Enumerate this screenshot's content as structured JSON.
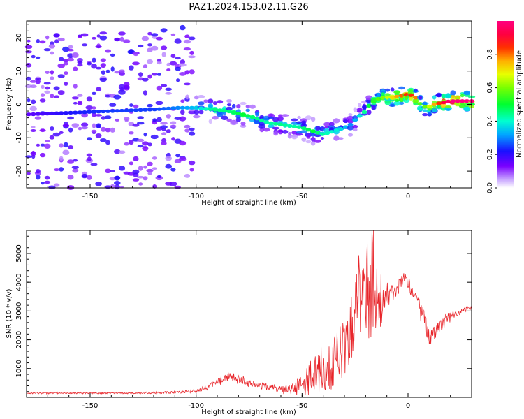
{
  "title": "PAZ1.2024.153.02.11.G26",
  "colors": {
    "snr_line": "#e8252a",
    "frame": "#000000",
    "background": "#ffffff"
  },
  "chart_data": [
    {
      "type": "heatmap",
      "xlabel": "Height of straight line (km)",
      "ylabel": "Frequency (Hz)",
      "xlim": [
        -180,
        30
      ],
      "ylim": [
        -25,
        25
      ],
      "x_ticks": [
        -150,
        -100,
        -50,
        0
      ],
      "y_ticks": [
        -20,
        -10,
        0,
        10,
        20
      ],
      "grid": false,
      "colorbar": {
        "label": "Normalized spectral amplitude",
        "range": [
          0,
          1
        ],
        "ticks": [
          0.0,
          0.2,
          0.4,
          0.6,
          0.8
        ],
        "colormap": "gist_rainbow_r"
      },
      "ridge": {
        "x": [
          -180,
          -160,
          -140,
          -120,
          -108,
          -100,
          -92,
          -85,
          -78,
          -72,
          -66,
          -60,
          -55,
          -50,
          -45,
          -40,
          -35,
          -30,
          -27,
          -24,
          -20,
          -18,
          -15,
          -12,
          -8,
          -4,
          0,
          3,
          6,
          9,
          12,
          16,
          20,
          25,
          30
        ],
        "freq": [
          -3,
          -2.5,
          -2,
          -1.5,
          -1,
          -1,
          -1.5,
          -2,
          -3,
          -4,
          -5.5,
          -6,
          -6.5,
          -7,
          -8,
          -9,
          -8,
          -7,
          -6,
          -4,
          -2,
          0,
          1.5,
          2,
          2,
          2.5,
          3,
          2.5,
          0,
          -1,
          0,
          0.5,
          1,
          1,
          1
        ],
        "amplitude": [
          0.15,
          0.22,
          0.25,
          0.25,
          0.3,
          0.35,
          0.45,
          0.45,
          0.5,
          0.45,
          0.42,
          0.45,
          0.42,
          0.45,
          0.5,
          0.42,
          0.4,
          0.35,
          0.3,
          0.35,
          0.45,
          0.5,
          0.55,
          0.6,
          0.7,
          0.8,
          0.85,
          0.85,
          0.55,
          0.6,
          0.75,
          0.9,
          1.0,
          1.0,
          1.0
        ]
      }
    },
    {
      "type": "line",
      "xlabel": "Height of straight line (km)",
      "ylabel": "SNR (10 * v/v)",
      "xlim": [
        -180,
        30
      ],
      "ylim": [
        0,
        5800
      ],
      "x_ticks": [
        -150,
        -100,
        -50,
        0
      ],
      "y_ticks": [
        1000,
        2000,
        3000,
        4000,
        5000
      ],
      "grid": false,
      "series": [
        {
          "x": [
            -180,
            -170,
            -160,
            -150,
            -140,
            -130,
            -120,
            -110,
            -100,
            -95,
            -90,
            -85,
            -80,
            -75,
            -70,
            -65,
            -60,
            -55,
            -50,
            -45,
            -40,
            -35,
            -30,
            -27,
            -24,
            -22,
            -20,
            -18,
            -16,
            -14,
            -12,
            -10,
            -8,
            -6,
            -4,
            -2,
            0,
            2,
            4,
            6,
            8,
            10,
            12,
            15,
            20,
            25,
            30
          ],
          "y": [
            150,
            150,
            150,
            150,
            150,
            150,
            160,
            170,
            220,
            350,
            500,
            700,
            650,
            500,
            400,
            350,
            300,
            300,
            400,
            800,
            1000,
            1300,
            1700,
            2500,
            3200,
            4000,
            4500,
            4200,
            5000,
            3800,
            3000,
            3500,
            3600,
            3700,
            3900,
            4300,
            4000,
            3600,
            3400,
            3000,
            2600,
            2100,
            2200,
            2500,
            2800,
            3000,
            3100
          ],
          "amplitude": [
            30,
            30,
            30,
            30,
            30,
            30,
            35,
            40,
            60,
            100,
            150,
            200,
            200,
            150,
            120,
            120,
            150,
            200,
            350,
            700,
            900,
            1000,
            1100,
            1200,
            1500,
            1700,
            2000,
            2400,
            2500,
            1800,
            800,
            500,
            400,
            300,
            250,
            250,
            250,
            250,
            300,
            400,
            400,
            400,
            300,
            250,
            200,
            150,
            120
          ]
        }
      ]
    }
  ]
}
